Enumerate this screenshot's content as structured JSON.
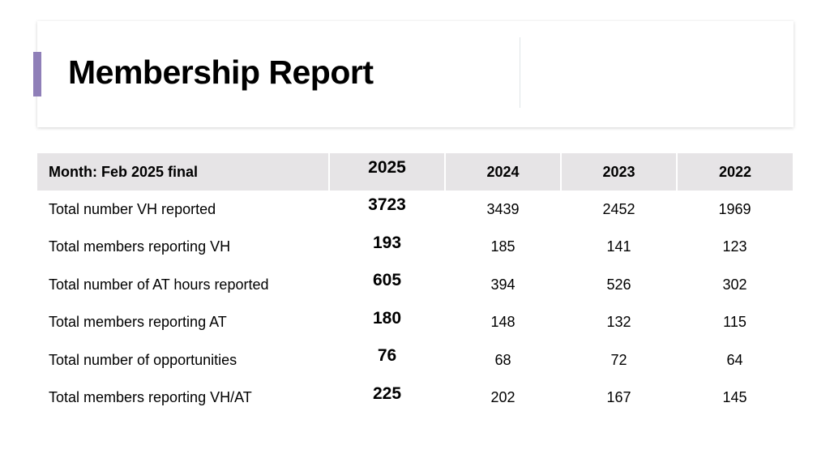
{
  "slide": {
    "title": "Membership Report",
    "accent_color": "#8f7fb8"
  },
  "table": {
    "label_header": "Month: Feb 2025 final",
    "years": [
      "2025",
      "2024",
      "2023",
      "2022"
    ],
    "rows": [
      {
        "label": "Total number VH reported",
        "values": [
          "3723",
          "3439",
          "2452",
          "1969"
        ]
      },
      {
        "label": "Total members reporting VH",
        "values": [
          "193",
          "185",
          "141",
          "123"
        ]
      },
      {
        "label": "Total number of AT hours reported",
        "values": [
          "605",
          "394",
          "526",
          "302"
        ]
      },
      {
        "label": "Total members reporting AT",
        "values": [
          "180",
          "148",
          "132",
          "115"
        ]
      },
      {
        "label": "Total number of opportunities",
        "values": [
          "76",
          "68",
          "72",
          "64"
        ]
      },
      {
        "label": "Total members reporting VH/AT",
        "values": [
          "225",
          "202",
          "167",
          "145"
        ]
      }
    ]
  }
}
